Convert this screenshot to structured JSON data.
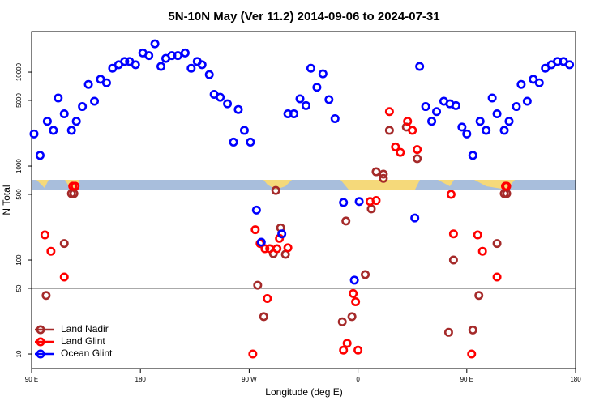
{
  "chart_data": {
    "type": "scatter",
    "title": "5N-10N May (Ver 11.2)   2014-09-06 to 2024-07-31",
    "x_label": "Longitude (deg E)",
    "y_label": "N Total",
    "log_y": true,
    "xlim": [
      90,
      540
    ],
    "ylim": [
      7,
      27000
    ],
    "xticks": [
      {
        "value": 90,
        "label": "90 E"
      },
      180,
      {
        "value": 270,
        "label": "90 W"
      },
      {
        "value": 360,
        "label": "0"
      },
      {
        "value": 450,
        "label": "90 E"
      },
      {
        "value": 540,
        "label": "180"
      }
    ],
    "yticks": [
      10,
      50,
      100,
      500,
      1000,
      5000,
      10000
    ],
    "hline": 50,
    "legend": "bottom-left",
    "series": [
      {
        "name": "Land Nadir",
        "color": "#a52a2a",
        "x": [
          102,
          117,
          123,
          125,
          277,
          282,
          290,
          292,
          296,
          300,
          347,
          350,
          355,
          366,
          371,
          375,
          381,
          381,
          386,
          400,
          409,
          435,
          439,
          455,
          460,
          475,
          481,
          483
        ],
        "values": [
          42,
          150,
          510,
          510,
          54,
          25,
          117,
          550,
          220,
          115,
          22,
          260,
          25,
          70,
          350,
          870,
          820,
          740,
          2400,
          2600,
          1200,
          17,
          100,
          18,
          42,
          150,
          510,
          510
        ]
      },
      {
        "name": "Land Glint",
        "color": "#ff0000",
        "x": [
          101,
          106,
          117,
          124,
          126,
          275,
          279,
          283,
          287,
          293,
          295,
          302,
          285,
          273,
          348,
          351,
          356,
          358,
          360,
          370,
          375,
          386,
          391,
          395,
          401,
          405,
          409,
          437,
          439,
          459,
          463,
          475,
          482,
          483,
          454
        ],
        "values": [
          185,
          124,
          66,
          610,
          610,
          210,
          150,
          132,
          132,
          132,
          170,
          135,
          39,
          10,
          11,
          13,
          44,
          36,
          11,
          420,
          430,
          3800,
          1600,
          1400,
          3000,
          2400,
          1500,
          500,
          190,
          185,
          124,
          66,
          610,
          610,
          10
        ]
      },
      {
        "name": "Ocean Glint",
        "color": "#0000ff",
        "x": [
          92,
          97,
          103,
          108,
          112,
          117,
          123,
          127,
          132,
          137,
          142,
          147,
          152,
          157,
          162,
          167,
          171,
          176,
          182,
          187,
          192,
          197,
          201,
          206,
          211,
          217,
          222,
          227,
          231,
          237,
          241,
          246,
          252,
          261,
          257,
          266,
          271,
          302,
          307,
          312,
          317,
          321,
          326,
          331,
          336,
          341,
          348,
          361,
          357,
          407,
          411,
          416,
          421,
          425,
          431,
          436,
          441,
          446,
          450,
          455,
          461,
          466,
          471,
          475,
          481,
          485,
          491,
          495,
          500,
          505,
          510,
          515,
          520,
          525,
          530,
          535,
          276,
          280,
          297
        ],
        "values": [
          2200,
          1300,
          3000,
          2400,
          5300,
          3600,
          2400,
          3000,
          4300,
          7400,
          4900,
          8400,
          7700,
          11000,
          12000,
          13000,
          13000,
          12000,
          16000,
          15000,
          20000,
          11500,
          14000,
          15000,
          15000,
          16000,
          11000,
          13000,
          12000,
          9400,
          5800,
          5400,
          4600,
          4000,
          1800,
          2400,
          1800,
          3600,
          3600,
          5200,
          4400,
          11000,
          6900,
          9600,
          5100,
          3200,
          410,
          420,
          61,
          280,
          11500,
          4300,
          3000,
          3800,
          4900,
          4600,
          4400,
          2600,
          2200,
          1300,
          3000,
          2400,
          5300,
          3600,
          2400,
          3000,
          4300,
          7400,
          4900,
          8400,
          7700,
          11000,
          12000,
          13000,
          13000,
          12000,
          340,
          155,
          190
        ]
      }
    ]
  }
}
